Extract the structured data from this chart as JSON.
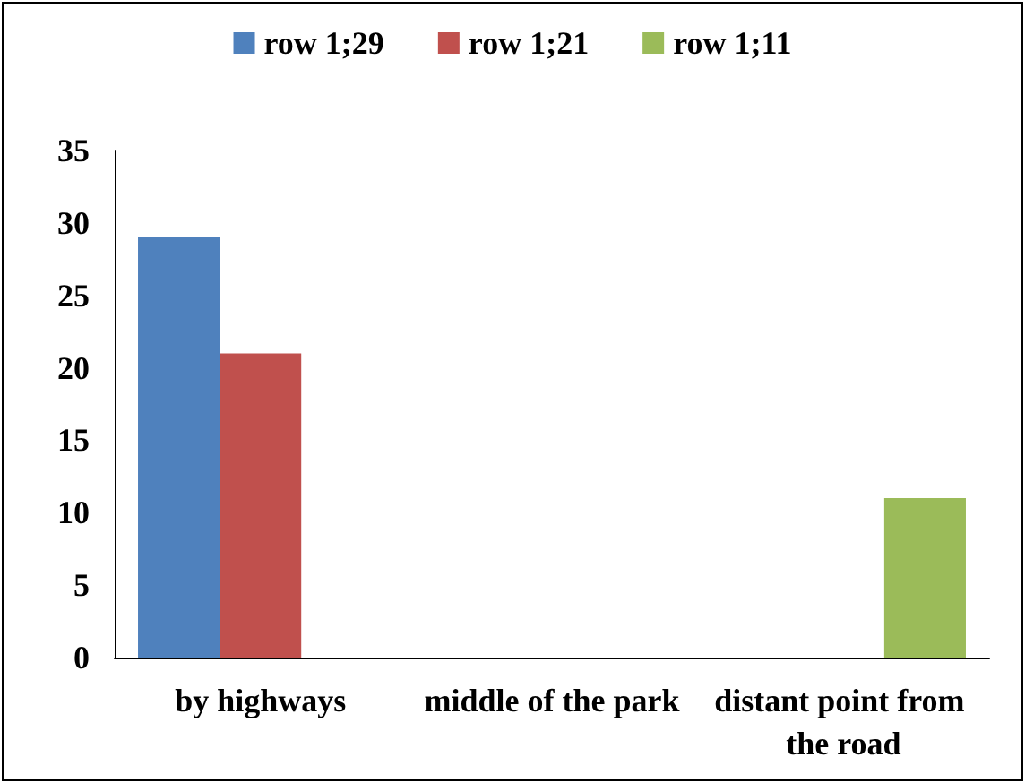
{
  "chart_data": {
    "type": "bar",
    "categories": [
      "by highways",
      "middle of the park",
      "distant point from the road"
    ],
    "series": [
      {
        "name": "row 1;29",
        "color": "#4f81bd",
        "values": [
          29,
          null,
          null
        ]
      },
      {
        "name": "row 1;21",
        "color": "#c0504d",
        "values": [
          21,
          null,
          null
        ]
      },
      {
        "name": "row 1;11",
        "color": "#9bbb59",
        "values": [
          null,
          null,
          11
        ]
      }
    ],
    "ylim": [
      0,
      35
    ],
    "yticks": [
      0,
      5,
      10,
      15,
      20,
      25,
      30,
      35
    ],
    "grid": false,
    "legend": "top"
  }
}
